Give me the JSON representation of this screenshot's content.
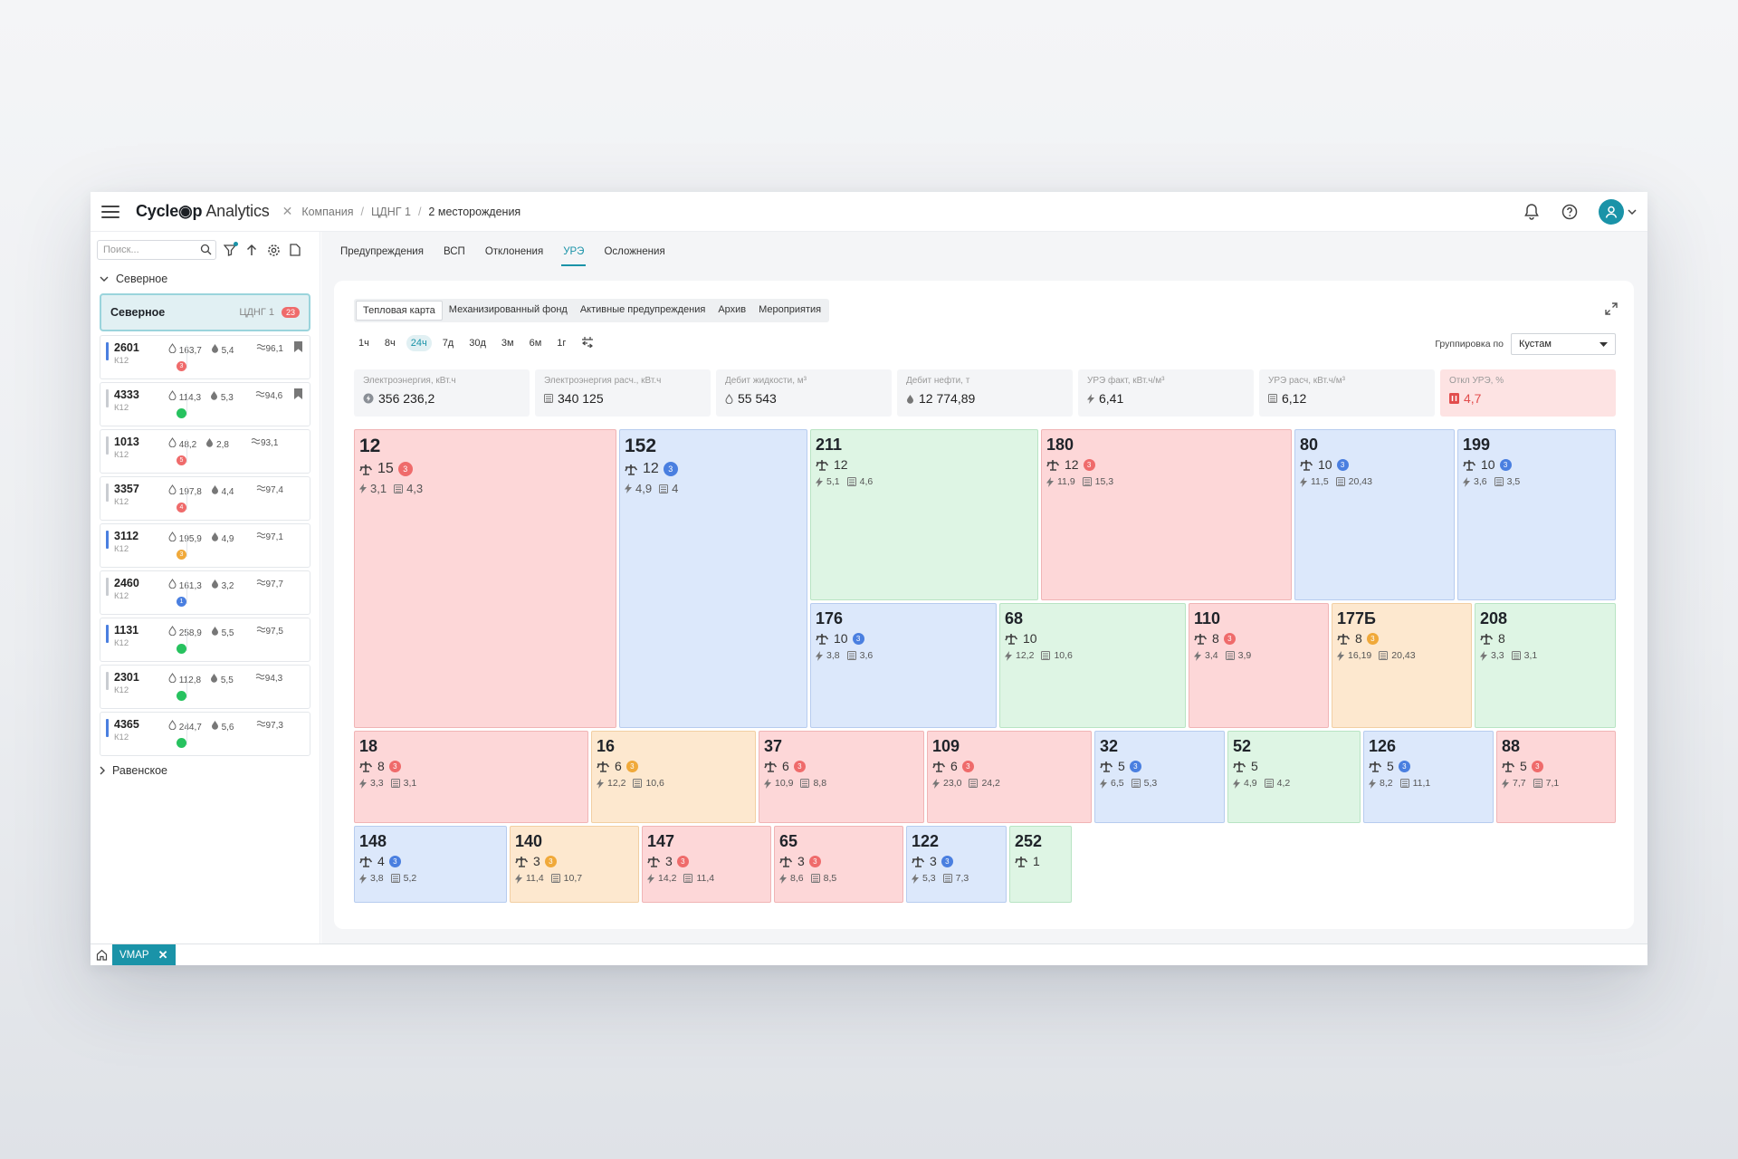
{
  "app": {
    "logo_main": "Cycle◉p",
    "logo_sub": "Analytics"
  },
  "breadcrumb": [
    "Компания",
    "ЦДНГ 1",
    "2 месторождения"
  ],
  "sidebar": {
    "search_placeholder": "Поиск...",
    "group1": "Северное",
    "group_card": {
      "name": "Северное",
      "sub": "ЦДНГ 1",
      "badge": "23"
    },
    "group2": "Равенское",
    "wells": [
      {
        "id": "2601",
        "k": "К12",
        "a": "163,7",
        "b": "5,4",
        "c": "96,1",
        "st": "3",
        "stc": "#ef6b6b",
        "bar": "#4a7fe0",
        "bm": true
      },
      {
        "id": "4333",
        "k": "К12",
        "a": "114,3",
        "b": "5,3",
        "c": "94,6",
        "st": "",
        "stc": "#27c25f",
        "bar": "#c9ccd1",
        "bm": true
      },
      {
        "id": "1013",
        "k": "К12",
        "a": "48,2",
        "b": "2,8",
        "c": "93,1",
        "st": "5",
        "stc": "#ef6b6b",
        "bar": "#c9ccd1",
        "bm": false
      },
      {
        "id": "3357",
        "k": "К12",
        "a": "197,8",
        "b": "4,4",
        "c": "97,4",
        "st": "4",
        "stc": "#ef6b6b",
        "bar": "#c9ccd1",
        "bm": false
      },
      {
        "id": "3112",
        "k": "К12",
        "a": "195,9",
        "b": "4,9",
        "c": "97,1",
        "st": "3",
        "stc": "#f0a93a",
        "bar": "#4a7fe0",
        "bm": false
      },
      {
        "id": "2460",
        "k": "К12",
        "a": "161,3",
        "b": "3,2",
        "c": "97,7",
        "st": "1",
        "stc": "#4a7fe0",
        "bar": "#c9ccd1",
        "bm": false
      },
      {
        "id": "1131",
        "k": "К12",
        "a": "258,9",
        "b": "5,5",
        "c": "97,5",
        "st": "",
        "stc": "#27c25f",
        "bar": "#4a7fe0",
        "bm": false
      },
      {
        "id": "2301",
        "k": "К12",
        "a": "112,8",
        "b": "5,5",
        "c": "94,3",
        "st": "",
        "stc": "#27c25f",
        "bar": "#c9ccd1",
        "bm": false
      },
      {
        "id": "4365",
        "k": "К12",
        "a": "244,7",
        "b": "5,6",
        "c": "97,3",
        "st": "",
        "stc": "#27c25f",
        "bar": "#4a7fe0",
        "bm": false
      }
    ]
  },
  "tabs": [
    "Предупреждения",
    "ВСП",
    "Отклонения",
    "УРЭ",
    "Осложнения"
  ],
  "active_tab": 3,
  "subtabs": [
    "Тепловая карта",
    "Механизированный фонд",
    "Активные предупреждения",
    "Архив",
    "Мероприятия"
  ],
  "periods": [
    "1ч",
    "8ч",
    "24ч",
    "7д",
    "30д",
    "3м",
    "6м",
    "1г"
  ],
  "active_period": 2,
  "grouping": {
    "label": "Группировка по",
    "value": "Кустам"
  },
  "kpis": [
    {
      "label": "Электроэнергия, кВт.ч",
      "value": "356 236,2",
      "icon": "bolt-circle"
    },
    {
      "label": "Электроэнергия расч., кВт.ч",
      "value": "340 125",
      "icon": "calc"
    },
    {
      "label": "Дебит жидкости, м³",
      "value": "55 543",
      "icon": "drop-outline"
    },
    {
      "label": "Дебит нефти, т",
      "value": "12 774,89",
      "icon": "drop-filled"
    },
    {
      "label": "УРЭ факт, кВт.ч/м³",
      "value": "6,41",
      "icon": "bolt"
    },
    {
      "label": "УРЭ расч, кВт.ч/м³",
      "value": "6,12",
      "icon": "calc"
    },
    {
      "label": "Откл УРЭ, %",
      "value": "4,7",
      "icon": "warn",
      "warn": true
    }
  ],
  "clusters": [
    {
      "num": "12",
      "wells": "15",
      "b": "3",
      "bc": "#ef6b6b",
      "e": "3,1",
      "c": "4,3",
      "color": "red"
    },
    {
      "num": "152",
      "wells": "12",
      "b": "3",
      "bc": "#4a7fe0",
      "e": "4,9",
      "c": "4",
      "color": "blue"
    },
    {
      "num": "211",
      "wells": "12",
      "b": "",
      "bc": "",
      "e": "5,1",
      "c": "4,6",
      "color": "green"
    },
    {
      "num": "180",
      "wells": "12",
      "b": "3",
      "bc": "#ef6b6b",
      "e": "11,9",
      "c": "15,3",
      "color": "red"
    },
    {
      "num": "80",
      "wells": "10",
      "b": "3",
      "bc": "#4a7fe0",
      "e": "11,5",
      "c": "20,43",
      "color": "blue"
    },
    {
      "num": "199",
      "wells": "10",
      "b": "3",
      "bc": "#4a7fe0",
      "e": "3,6",
      "c": "3,5",
      "color": "blue"
    },
    {
      "num": "176",
      "wells": "10",
      "b": "3",
      "bc": "#4a7fe0",
      "e": "3,8",
      "c": "3,6",
      "color": "blue"
    },
    {
      "num": "68",
      "wells": "10",
      "b": "",
      "bc": "",
      "e": "12,2",
      "c": "10,6",
      "color": "green"
    },
    {
      "num": "110",
      "wells": "8",
      "b": "3",
      "bc": "#ef6b6b",
      "e": "3,4",
      "c": "3,9",
      "color": "red"
    },
    {
      "num": "177Б",
      "wells": "8",
      "b": "3",
      "bc": "#f0a93a",
      "e": "16,19",
      "c": "20,43",
      "color": "orange"
    },
    {
      "num": "208",
      "wells": "8",
      "b": "",
      "bc": "",
      "e": "3,3",
      "c": "3,1",
      "color": "green"
    },
    {
      "num": "18",
      "wells": "8",
      "b": "3",
      "bc": "#ef6b6b",
      "e": "3,3",
      "c": "3,1",
      "color": "red"
    },
    {
      "num": "16",
      "wells": "6",
      "b": "3",
      "bc": "#f0a93a",
      "e": "12,2",
      "c": "10,6",
      "color": "orange"
    },
    {
      "num": "37",
      "wells": "6",
      "b": "3",
      "bc": "#ef6b6b",
      "e": "10,9",
      "c": "8,8",
      "color": "red"
    },
    {
      "num": "109",
      "wells": "6",
      "b": "3",
      "bc": "#ef6b6b",
      "e": "23,0",
      "c": "24,2",
      "color": "red"
    },
    {
      "num": "32",
      "wells": "5",
      "b": "3",
      "bc": "#4a7fe0",
      "e": "6,5",
      "c": "5,3",
      "color": "blue"
    },
    {
      "num": "52",
      "wells": "5",
      "b": "",
      "bc": "",
      "e": "4,9",
      "c": "4,2",
      "color": "green"
    },
    {
      "num": "126",
      "wells": "5",
      "b": "3",
      "bc": "#4a7fe0",
      "e": "8,2",
      "c": "11,1",
      "color": "blue"
    },
    {
      "num": "88",
      "wells": "5",
      "b": "3",
      "bc": "#ef6b6b",
      "e": "7,7",
      "c": "7,1",
      "color": "red"
    },
    {
      "num": "148",
      "wells": "4",
      "b": "3",
      "bc": "#4a7fe0",
      "e": "3,8",
      "c": "5,2",
      "color": "blue"
    },
    {
      "num": "140",
      "wells": "3",
      "b": "3",
      "bc": "#f0a93a",
      "e": "11,4",
      "c": "10,7",
      "color": "orange"
    },
    {
      "num": "147",
      "wells": "3",
      "b": "3",
      "bc": "#ef6b6b",
      "e": "14,2",
      "c": "11,4",
      "color": "red"
    },
    {
      "num": "65",
      "wells": "3",
      "b": "3",
      "bc": "#ef6b6b",
      "e": "8,6",
      "c": "8,5",
      "color": "red"
    },
    {
      "num": "122",
      "wells": "3",
      "b": "3",
      "bc": "#4a7fe0",
      "e": "5,3",
      "c": "7,3",
      "color": "blue"
    },
    {
      "num": "252",
      "wells": "1",
      "b": "",
      "bc": "",
      "e": "",
      "c": "",
      "color": "green"
    }
  ],
  "bottom_tab": "VMAP",
  "colors": {
    "accent": "#1a93a8",
    "red": "#ef6b6b",
    "blue": "#4a7fe0",
    "green": "#27c25f",
    "orange": "#f0a93a"
  }
}
